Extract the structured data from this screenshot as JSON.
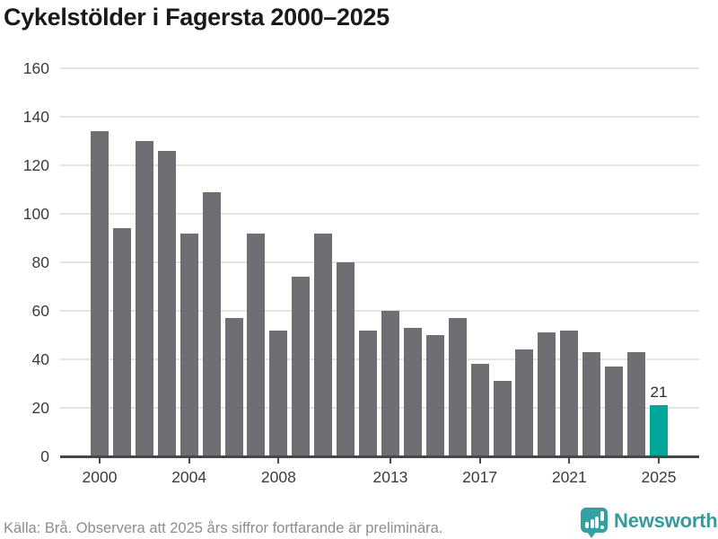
{
  "title": "Cykelstölder i Fagersta 2000–2025",
  "chart_data": {
    "type": "bar",
    "title": "Cykelstölder i Fagersta 2000–2025",
    "categories": [
      "2000",
      "2001",
      "2002",
      "2003",
      "2004",
      "2005",
      "2006",
      "2007",
      "2008",
      "2009",
      "2010",
      "2011",
      "2012",
      "2013",
      "2014",
      "2015",
      "2016",
      "2017",
      "2018",
      "2019",
      "2020",
      "2021",
      "2022",
      "2023",
      "2024",
      "2025"
    ],
    "values": [
      134,
      94,
      130,
      126,
      92,
      109,
      57,
      92,
      52,
      74,
      92,
      80,
      52,
      60,
      53,
      50,
      57,
      38,
      31,
      44,
      51,
      52,
      43,
      37,
      43,
      21
    ],
    "ylim": [
      0,
      160
    ],
    "ytick_step": 20,
    "ytick_labels": [
      "0",
      "20",
      "40",
      "60",
      "80",
      "100",
      "120",
      "140",
      "160"
    ],
    "xtick_labels": [
      "2000",
      "2004",
      "2008",
      "2013",
      "2017",
      "2021",
      "2025"
    ],
    "xtick_indices": [
      0,
      4,
      8,
      13,
      17,
      21,
      25
    ],
    "grid": "horizontal",
    "legend": "none",
    "bar_color": "#6e6e73",
    "highlight": {
      "index": 25,
      "color": "#00a69a",
      "data_label": "21"
    },
    "colors": {
      "gridline": "#e5e5e5",
      "axis": "#474747",
      "axis_text": "#3c3c3c",
      "value_label_text": "#2b2b2b"
    }
  },
  "footer": {
    "source_note": "Källa: Brå. Observera att 2025 års siffror fortfarande är preliminära."
  },
  "logo": {
    "icon": "newsworthy-speech-bubble-bar-chart-icon",
    "text": "Newsworthy",
    "color": "#359b9c"
  }
}
